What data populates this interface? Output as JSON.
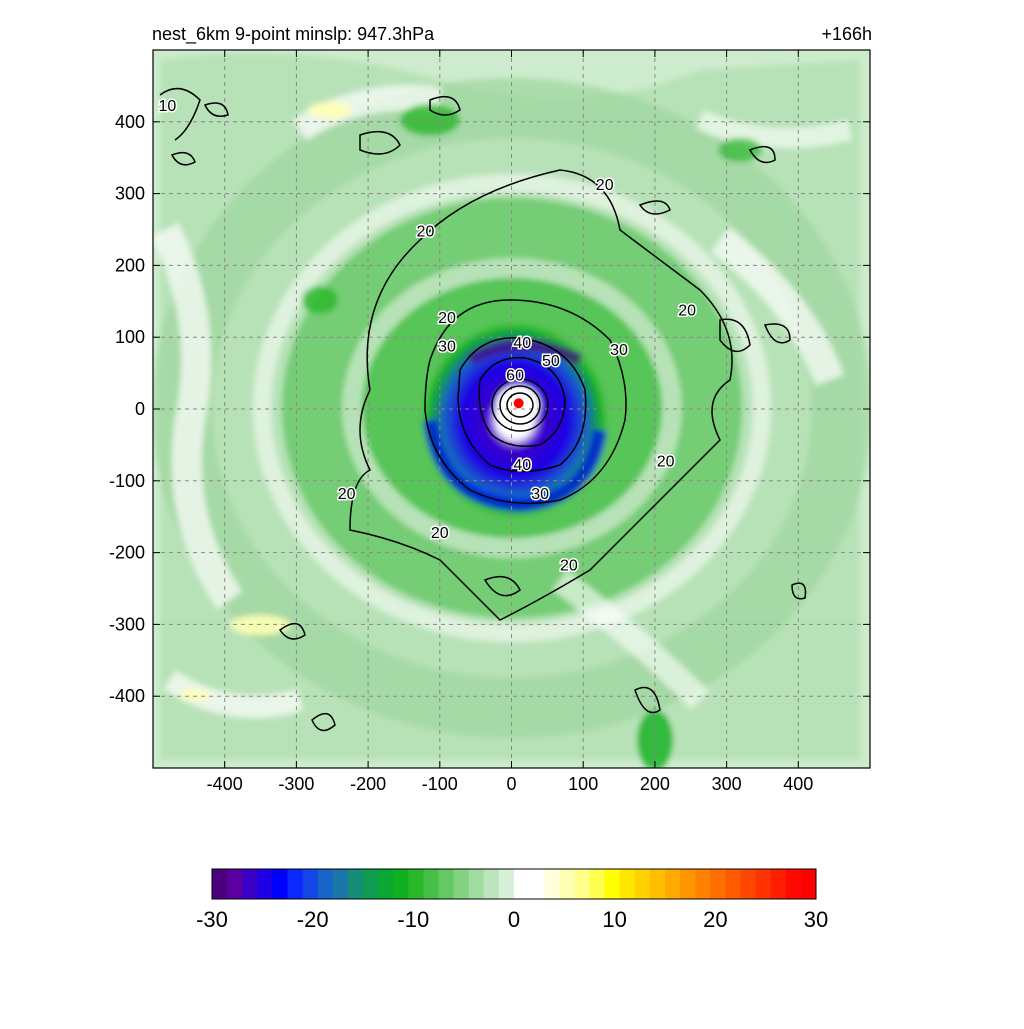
{
  "chart_data": {
    "type": "heatmap",
    "title_left": "nest_6km  9-point minslp: 947.3hPa",
    "title_right": "+166h",
    "x": {
      "ticks": [
        -400,
        -300,
        -200,
        -100,
        0,
        100,
        200,
        300,
        400
      ],
      "range": [
        -500,
        500
      ]
    },
    "y": {
      "ticks": [
        400,
        300,
        200,
        100,
        0,
        -100,
        -200,
        -300,
        -400
      ],
      "range": [
        -500,
        500
      ]
    },
    "grid": true,
    "contours": {
      "labels": [
        "10",
        "20",
        "20",
        "20",
        "20",
        "20",
        "20",
        "20",
        "20",
        "30",
        "30",
        "30",
        "40",
        "40",
        "50",
        "60"
      ],
      "levels": [
        20,
        30,
        40,
        50,
        60
      ]
    },
    "colorbar": {
      "range": [
        -30,
        30
      ],
      "tick_labels": [
        "-30",
        "-20",
        "-10",
        "0",
        "10",
        "20",
        "30"
      ],
      "colors": [
        "#4b0080",
        "#5a00a0",
        "#3a00c8",
        "#1e00e6",
        "#0000ff",
        "#0a28ff",
        "#1446e6",
        "#1864c8",
        "#1a78a8",
        "#158c78",
        "#109c50",
        "#0aa832",
        "#10b020",
        "#28b828",
        "#46c046",
        "#64c864",
        "#82d282",
        "#a0dca0",
        "#bee6be",
        "#d8f0d8",
        "#ffffff",
        "#ffffff",
        "#ffffdc",
        "#ffffb4",
        "#ffff8c",
        "#ffff50",
        "#ffff00",
        "#ffe600",
        "#ffd200",
        "#ffbe00",
        "#ffaa00",
        "#ff9600",
        "#ff8200",
        "#ff6e00",
        "#ff5a00",
        "#ff4600",
        "#ff3200",
        "#ff1e00",
        "#ff0a00",
        "#ff0000"
      ]
    },
    "center_marker": {
      "x": 10,
      "y": 8,
      "color": "#ff0000"
    }
  }
}
